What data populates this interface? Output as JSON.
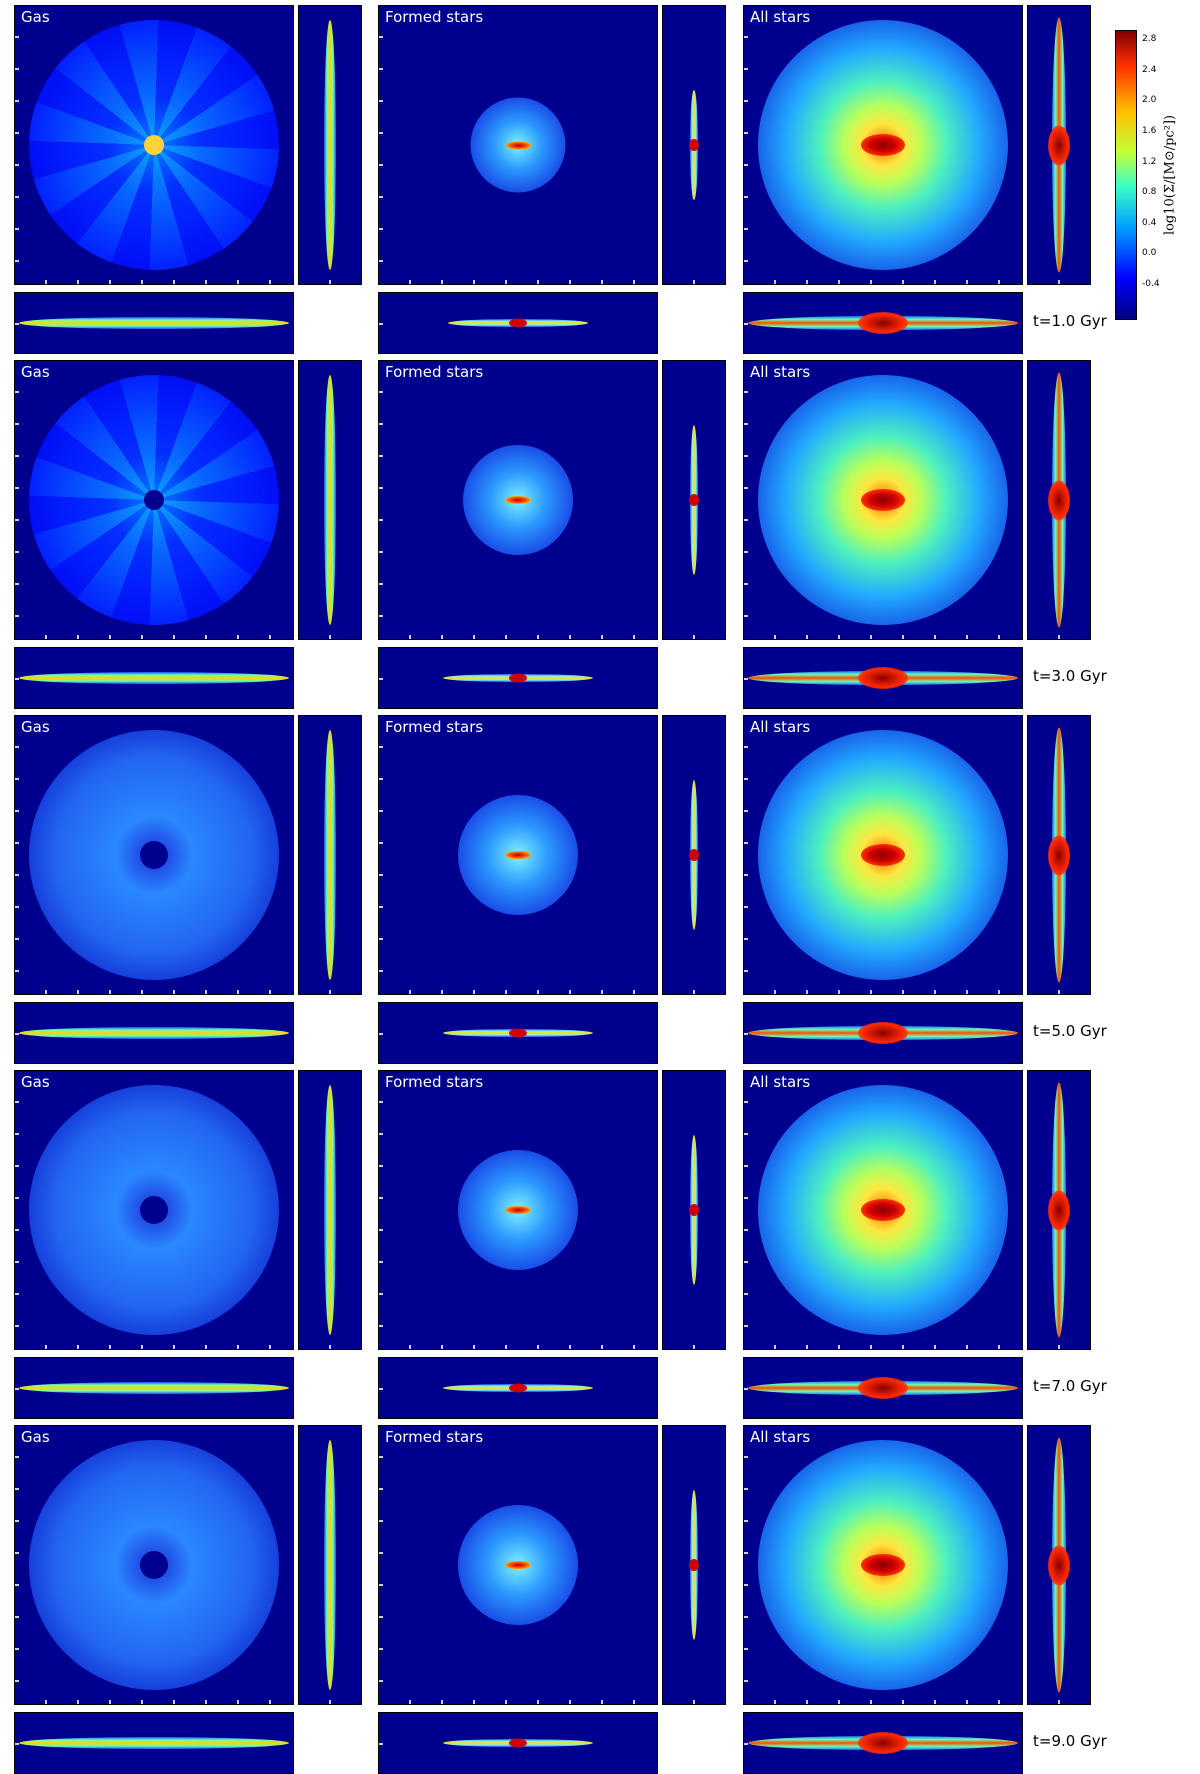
{
  "panel_titles": {
    "gas": "Gas",
    "formed": "Formed stars",
    "all": "All stars"
  },
  "rows": [
    {
      "time": "t=1.0 Gyr",
      "gas_arms": "strong",
      "formed_size": "small"
    },
    {
      "time": "t=3.0 Gyr",
      "gas_arms": "strong",
      "formed_size": "medium"
    },
    {
      "time": "t=5.0 Gyr",
      "gas_arms": "medium",
      "formed_size": "medium"
    },
    {
      "time": "t=7.0 Gyr",
      "gas_arms": "weak",
      "formed_size": "medium"
    },
    {
      "time": "t=9.0 Gyr",
      "gas_arms": "weak",
      "formed_size": "medium"
    }
  ],
  "colorbar": {
    "label": "log10(Σ/[M⊙/pc²])",
    "ticks": [
      "2.8",
      "2.4",
      "2.0",
      "1.6",
      "1.2",
      "0.8",
      "0.4",
      "0.0",
      "-0.4"
    ],
    "colormap": "jet",
    "background": "#00008f"
  }
}
